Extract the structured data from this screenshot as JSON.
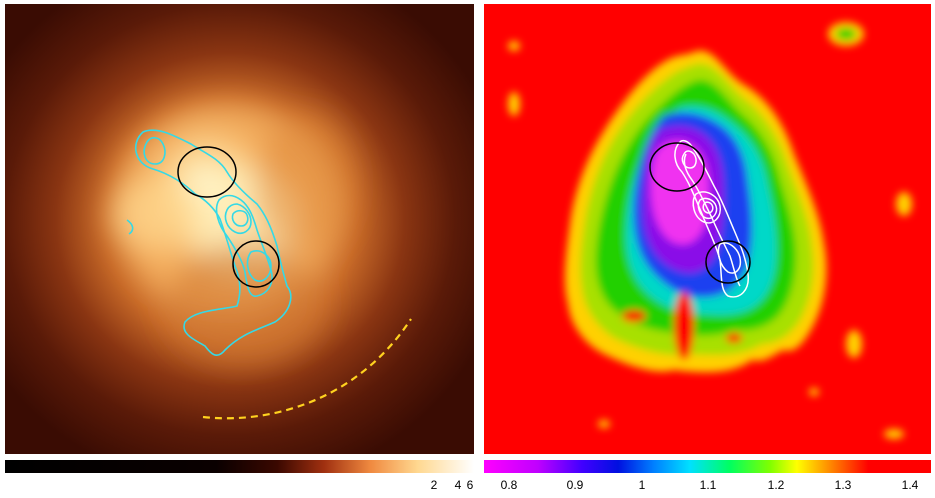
{
  "left_panel": {
    "colormap": "heat",
    "colorbar_ticks": [
      "2",
      "4",
      "6"
    ],
    "contour_color": "#35d9e6",
    "circle_color": "#000000",
    "arc_color": "#ffd21f"
  },
  "right_panel": {
    "colormap": "rainbow",
    "colorbar_ticks": [
      "0.8",
      "0.9",
      "1",
      "1.1",
      "1.2",
      "1.3",
      "1.4"
    ],
    "background_color": "#ff0000",
    "contour_color": "#ffffff",
    "circle_color": "#000000"
  }
}
